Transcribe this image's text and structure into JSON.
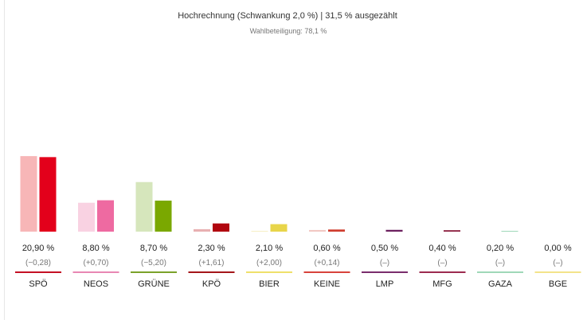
{
  "header": {
    "title": "Hochrechnung (Schwankung 2,0 %) | 31,5 % ausgezählt",
    "subtitle": "Wahlbeteiligung: 78,1 %"
  },
  "chart_data": {
    "type": "bar",
    "categories": [
      "SPÖ",
      "NEOS",
      "GRÜNE",
      "KPÖ",
      "BIER",
      "KEINE",
      "LMP",
      "MFG",
      "GAZA",
      "BGE"
    ],
    "series": [
      {
        "values": [
          21.18,
          8.1,
          13.9,
          0.69,
          0.1,
          0.46,
          null,
          null,
          null,
          null
        ]
      },
      {
        "values": [
          20.9,
          8.8,
          8.7,
          2.3,
          2.1,
          0.6,
          0.5,
          0.4,
          0.2,
          0.0
        ]
      }
    ],
    "value_labels": [
      "20,90 %",
      "8,80 %",
      "8,70 %",
      "2,30 %",
      "2,10 %",
      "0,60 %",
      "0,50 %",
      "0,40 %",
      "0,20 %",
      "0,00 %"
    ],
    "change_labels": [
      "(−0,28)",
      "(+0,70)",
      "(−5,20)",
      "(+1,61)",
      "(+2,00)",
      "(+0,14)",
      "(–)",
      "(–)",
      "(–)",
      "(–)"
    ],
    "colors": {
      "current": [
        "#e3001b",
        "#ee6aa1",
        "#7aa800",
        "#b1060f",
        "#e8d54a",
        "#cf3d2e",
        "#6b1f5e",
        "#8a1c3c",
        "#9fd8b8",
        "#f3e38a"
      ],
      "previous": [
        "#f7b6b7",
        "#f9d2e2",
        "#d6e6bc",
        "#e8b0b2",
        "#f6efc4",
        "#f2c7c2",
        "#d8c5d4",
        "#dcc2c9",
        "#e0f2e8",
        "#fbf5d2"
      ],
      "underline": [
        "#c41024",
        "#e887b3",
        "#7ba22a",
        "#a4161a",
        "#efe06a",
        "#d8433b",
        "#7a2d6c",
        "#9c2b4f",
        "#9fd8b8",
        "#f3e38a"
      ]
    },
    "ylim": [
      0,
      25
    ],
    "grid": false,
    "legend": "none"
  }
}
